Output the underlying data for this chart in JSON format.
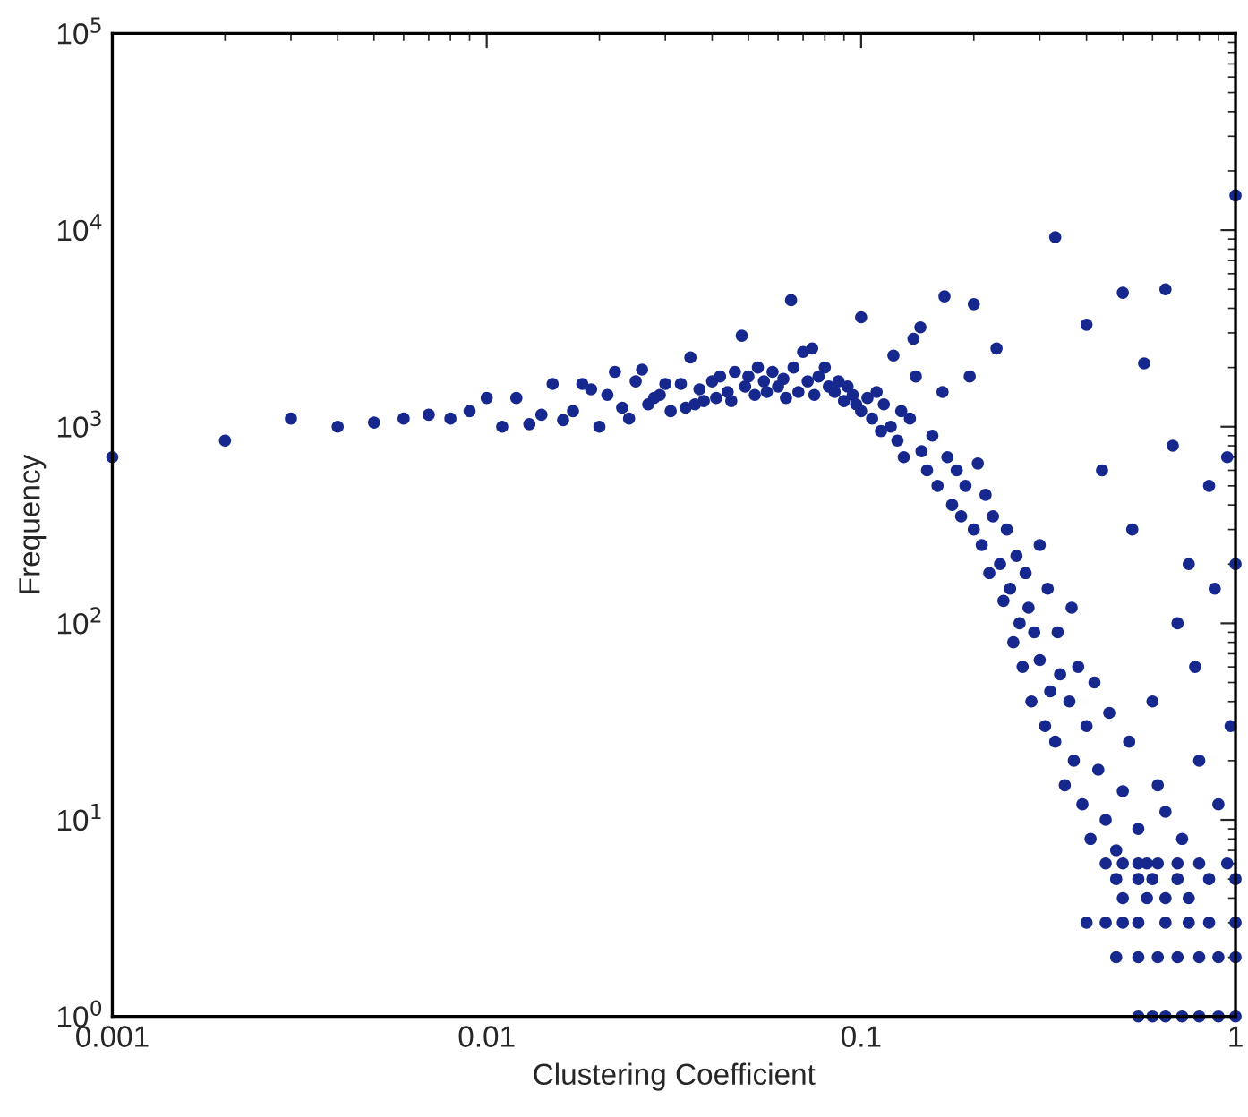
{
  "chart_data": {
    "type": "scatter",
    "xlabel": "Clustering Coefficient",
    "ylabel": "Frequency",
    "log": "xy",
    "grid": false,
    "marker": "circle",
    "xlim": [
      0.001,
      1
    ],
    "ylim": [
      1,
      100000
    ],
    "xticks": [
      0.001,
      0.01,
      0.1,
      1
    ],
    "yticks": [
      {
        "value": 1,
        "label": "10$^{0}$"
      },
      {
        "value": 10,
        "label": "10$^{1}$"
      },
      {
        "value": 100,
        "label": "10$^{2}$"
      },
      {
        "value": 1000,
        "label": "10$^{3}$"
      },
      {
        "value": 10000,
        "label": "10$^{4}$"
      },
      {
        "value": 100000,
        "label": "10$^{5}$"
      }
    ],
    "series": [
      {
        "color": "#16288e",
        "x": [
          0.001,
          0.002,
          0.003,
          0.004,
          0.005,
          0.006,
          0.007,
          0.008,
          0.009,
          0.01,
          0.011,
          0.012,
          0.013,
          0.014,
          0.015,
          0.016,
          0.017,
          0.018,
          0.019,
          0.02,
          0.021,
          0.022,
          0.023,
          0.024,
          0.025,
          0.026,
          0.027,
          0.028,
          0.029,
          0.03,
          0.031,
          0.033,
          0.034,
          0.035,
          0.036,
          0.037,
          0.038,
          0.04,
          0.041,
          0.042,
          0.044,
          0.045,
          0.046,
          0.048,
          0.049,
          0.05,
          0.052,
          0.053,
          0.055,
          0.056,
          0.058,
          0.06,
          0.062,
          0.063,
          0.065,
          0.066,
          0.068,
          0.07,
          0.072,
          0.074,
          0.075,
          0.077,
          0.08,
          0.082,
          0.085,
          0.087,
          0.09,
          0.092,
          0.095,
          0.097,
          0.1,
          0.1,
          0.104,
          0.107,
          0.11,
          0.113,
          0.115,
          0.12,
          0.122,
          0.125,
          0.128,
          0.13,
          0.135,
          0.138,
          0.14,
          0.144,
          0.145,
          0.15,
          0.155,
          0.16,
          0.165,
          0.167,
          0.17,
          0.175,
          0.18,
          0.185,
          0.19,
          0.195,
          0.2,
          0.2,
          0.205,
          0.21,
          0.215,
          0.22,
          0.225,
          0.23,
          0.235,
          0.24,
          0.245,
          0.25,
          0.255,
          0.26,
          0.265,
          0.27,
          0.275,
          0.28,
          0.285,
          0.29,
          0.3,
          0.3,
          0.31,
          0.315,
          0.32,
          0.33,
          0.33,
          0.335,
          0.34,
          0.35,
          0.36,
          0.365,
          0.37,
          0.38,
          0.39,
          0.4,
          0.4,
          0.41,
          0.42,
          0.43,
          0.44,
          0.45,
          0.46,
          0.48,
          0.5,
          0.5,
          0.52,
          0.53,
          0.55,
          0.57,
          0.58,
          0.6,
          0.62,
          0.65,
          0.65,
          0.68,
          0.7,
          0.72,
          0.75,
          0.78,
          0.8,
          0.85,
          0.88,
          0.9,
          0.95,
          0.97,
          1,
          1,
          0.45,
          0.5,
          0.55,
          0.62,
          0.7,
          0.8,
          0.95,
          0.48,
          0.55,
          0.6,
          0.7,
          0.85,
          1,
          0.5,
          0.58,
          0.65,
          0.75,
          0.4,
          0.45,
          0.5,
          0.55,
          0.65,
          0.75,
          0.85,
          1,
          0.48,
          0.55,
          0.62,
          0.7,
          0.8,
          0.9,
          1,
          0.55,
          0.6,
          0.65,
          0.72,
          0.8,
          0.9,
          1
        ],
        "values": [
          700,
          850,
          1100,
          1000,
          1050,
          1100,
          1150,
          1100,
          1200,
          1400,
          1000,
          1400,
          1030,
          1150,
          1650,
          1080,
          1200,
          1650,
          1550,
          1000,
          1450,
          1900,
          1250,
          1100,
          1700,
          1950,
          1300,
          1400,
          1450,
          1650,
          1200,
          1650,
          1250,
          2250,
          1300,
          1550,
          1350,
          1700,
          1400,
          1800,
          1500,
          1350,
          1900,
          2900,
          1600,
          1800,
          1450,
          2000,
          1700,
          1500,
          1900,
          1600,
          1750,
          1400,
          4400,
          2000,
          1500,
          2400,
          1700,
          2500,
          1450,
          1800,
          2000,
          1600,
          1500,
          1700,
          1350,
          1600,
          1450,
          1300,
          3600,
          1200,
          1400,
          1100,
          1500,
          950,
          1300,
          1000,
          2300,
          850,
          1200,
          700,
          1100,
          2800,
          1800,
          3200,
          750,
          600,
          900,
          500,
          1500,
          4600,
          700,
          400,
          600,
          350,
          500,
          1800,
          4200,
          300,
          650,
          250,
          450,
          180,
          350,
          2500,
          200,
          130,
          300,
          150,
          80,
          220,
          100,
          60,
          180,
          120,
          40,
          90,
          250,
          65,
          30,
          150,
          45,
          9200,
          25,
          90,
          55,
          15,
          40,
          120,
          20,
          60,
          12,
          3300,
          30,
          8,
          50,
          18,
          600,
          10,
          35,
          7,
          4800,
          14,
          25,
          300,
          9,
          2100,
          6,
          40,
          15,
          5000,
          11,
          800,
          100,
          8,
          200,
          60,
          20,
          500,
          150,
          12,
          700,
          30,
          15000,
          200,
          6,
          6,
          6,
          6,
          6,
          6,
          6,
          5,
          5,
          5,
          5,
          5,
          5,
          4,
          4,
          4,
          4,
          3,
          3,
          3,
          3,
          3,
          3,
          3,
          3,
          2,
          2,
          2,
          2,
          2,
          2,
          2,
          1,
          1,
          1,
          1,
          1,
          1,
          1
        ]
      }
    ]
  }
}
